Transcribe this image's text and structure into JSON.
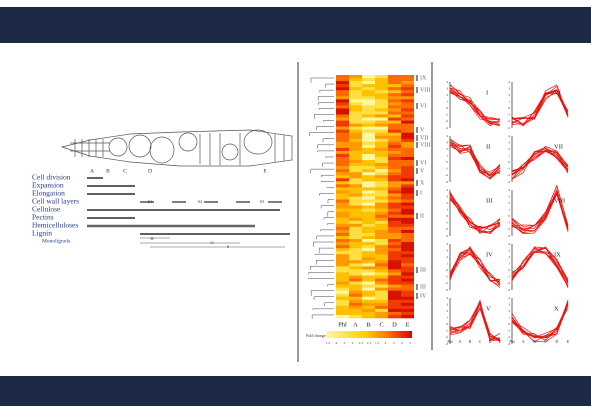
{
  "figure": {
    "stem_labels": [
      "A",
      "B",
      "C",
      "D",
      "E"
    ],
    "processes": [
      "Cell division",
      "Expansion",
      "Elongation",
      "Cell wall layers",
      "Cellulose",
      "Pectins",
      "Hemicelluloses",
      "Lignin"
    ],
    "subprocess": "Monolignols",
    "layer_labels": [
      "S1",
      "S2",
      "S3"
    ],
    "lignin_labels": [
      "H",
      "G",
      "S"
    ],
    "heatmap": {
      "columns": [
        "Phl",
        "A",
        "B",
        "C",
        "D",
        "E"
      ],
      "clusters": [
        "IX",
        "VIII",
        "VI",
        "V",
        "VII",
        "VIII",
        "VI",
        "V",
        "X",
        "I",
        "II",
        "III",
        "III",
        "IV"
      ],
      "legend_title": "Fold change",
      "legend_ticks": [
        "1.5",
        "4",
        "3",
        "2",
        "1.5",
        "1:1",
        "1.5",
        "2",
        "3",
        "4",
        "5"
      ]
    },
    "profiles": {
      "panels": [
        "I",
        "VI",
        "II",
        "VII",
        "III",
        "VIII",
        "IV",
        "IX",
        "V",
        "X"
      ],
      "x_labels": [
        "Phl",
        "A",
        "B",
        "C",
        "D",
        "E"
      ],
      "y_ticks": [
        "4",
        "3",
        "2",
        "1",
        "0",
        "-1",
        "-2",
        "-3"
      ]
    }
  }
}
